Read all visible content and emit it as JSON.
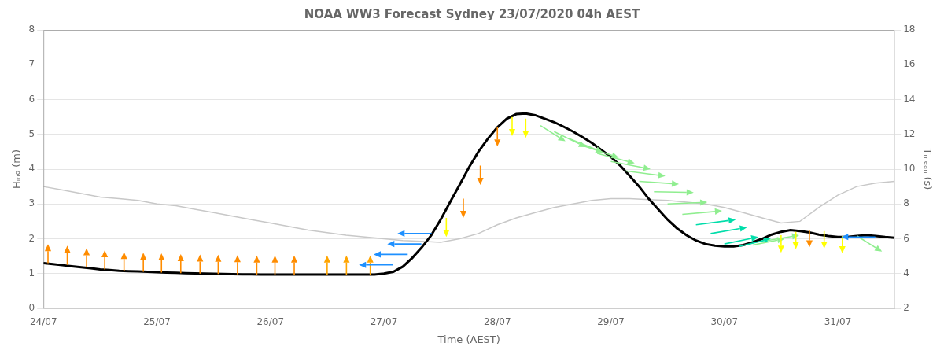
{
  "chart_data": {
    "type": "line",
    "title": "NOAA WW3 Forecast Sydney 23/07/2020 04h AEST",
    "xlabel": "Time (AEST)",
    "ylabel": "Hₘ₀ (m)",
    "y2label": "Tₘₑₐₙ (s)",
    "xlim": [
      0.0,
      7.5
    ],
    "xticks": [
      {
        "value": 0,
        "label": "24/07"
      },
      {
        "value": 1,
        "label": "25/07"
      },
      {
        "value": 2,
        "label": "26/07"
      },
      {
        "value": 3,
        "label": "27/07"
      },
      {
        "value": 4,
        "label": "28/07"
      },
      {
        "value": 5,
        "label": "29/07"
      },
      {
        "value": 6,
        "label": "30/07"
      },
      {
        "value": 7,
        "label": "31/07"
      }
    ],
    "ylim": [
      0,
      8
    ],
    "yticks": [
      0,
      1,
      2,
      3,
      4,
      5,
      6,
      7,
      8
    ],
    "y2lim": [
      2,
      18
    ],
    "y2ticks": [
      2,
      4,
      6,
      8,
      10,
      12,
      14,
      16,
      18
    ],
    "grid": "y",
    "legend": false,
    "series": [
      {
        "axis": "y2",
        "color": "#c8c8c8",
        "x": [
          0.0,
          0.167,
          0.333,
          0.5,
          0.667,
          0.833,
          1.0,
          1.167,
          1.333,
          1.5,
          1.667,
          1.833,
          2.0,
          2.167,
          2.333,
          2.5,
          2.667,
          2.833,
          3.0,
          3.167,
          3.333,
          3.5,
          3.667,
          3.833,
          4.0,
          4.167,
          4.333,
          4.5,
          4.667,
          4.833,
          5.0,
          5.167,
          5.333,
          5.5,
          5.667,
          5.833,
          6.0,
          6.167,
          6.333,
          6.5,
          6.667,
          6.833,
          7.0,
          7.167,
          7.333,
          7.5
        ],
        "values": [
          9.0,
          8.8,
          8.6,
          8.4,
          8.3,
          8.2,
          8.0,
          7.9,
          7.7,
          7.5,
          7.3,
          7.1,
          6.9,
          6.7,
          6.5,
          6.35,
          6.2,
          6.1,
          6.0,
          5.9,
          5.85,
          5.8,
          6.0,
          6.3,
          6.8,
          7.2,
          7.5,
          7.8,
          8.0,
          8.2,
          8.3,
          8.3,
          8.25,
          8.2,
          8.1,
          8.0,
          7.8,
          7.5,
          7.2,
          6.9,
          7.0,
          7.8,
          8.5,
          9.0,
          9.2,
          9.3
        ]
      },
      {
        "axis": "y",
        "color": "#000000",
        "x": [
          0.0,
          0.083,
          0.167,
          0.25,
          0.333,
          0.417,
          0.5,
          0.583,
          0.667,
          0.75,
          0.833,
          0.917,
          1.0,
          1.083,
          1.167,
          1.25,
          1.333,
          1.417,
          1.5,
          1.583,
          1.667,
          1.75,
          1.833,
          1.917,
          2.0,
          2.083,
          2.167,
          2.25,
          2.333,
          2.417,
          2.5,
          2.583,
          2.667,
          2.75,
          2.833,
          2.917,
          3.0,
          3.083,
          3.167,
          3.25,
          3.333,
          3.417,
          3.5,
          3.583,
          3.667,
          3.75,
          3.833,
          3.917,
          4.0,
          4.083,
          4.167,
          4.25,
          4.333,
          4.417,
          4.5,
          4.583,
          4.667,
          4.75,
          4.833,
          4.917,
          5.0,
          5.083,
          5.167,
          5.25,
          5.333,
          5.417,
          5.5,
          5.583,
          5.667,
          5.75,
          5.833,
          5.917,
          6.0,
          6.083,
          6.167,
          6.25,
          6.333,
          6.417,
          6.5,
          6.583,
          6.667,
          6.75,
          6.833,
          6.917,
          7.0,
          7.083,
          7.167,
          7.25,
          7.333,
          7.417,
          7.5
        ],
        "values": [
          1.3,
          1.27,
          1.24,
          1.21,
          1.18,
          1.15,
          1.12,
          1.1,
          1.08,
          1.07,
          1.06,
          1.05,
          1.04,
          1.03,
          1.02,
          1.01,
          1.005,
          1.0,
          0.995,
          0.99,
          0.985,
          0.98,
          0.975,
          0.97,
          0.97,
          0.97,
          0.97,
          0.97,
          0.97,
          0.97,
          0.97,
          0.97,
          0.97,
          0.97,
          0.97,
          0.97,
          1.0,
          1.05,
          1.2,
          1.45,
          1.75,
          2.1,
          2.55,
          3.05,
          3.55,
          4.05,
          4.5,
          4.88,
          5.2,
          5.45,
          5.58,
          5.6,
          5.55,
          5.45,
          5.35,
          5.22,
          5.08,
          4.92,
          4.75,
          4.55,
          4.35,
          4.1,
          3.8,
          3.5,
          3.15,
          2.85,
          2.55,
          2.3,
          2.1,
          1.95,
          1.85,
          1.8,
          1.78,
          1.78,
          1.82,
          1.9,
          2.0,
          2.12,
          2.2,
          2.25,
          2.22,
          2.18,
          2.12,
          2.08,
          2.05,
          2.05,
          2.08,
          2.1,
          2.08,
          2.05,
          2.03
        ]
      }
    ],
    "arrows": [
      {
        "x": 0.04,
        "y": 1.3,
        "dx": 0.0,
        "dy": 0.55,
        "color": "#FF8C00"
      },
      {
        "x": 0.21,
        "y": 1.25,
        "dx": 0.0,
        "dy": 0.55,
        "color": "#FF8C00"
      },
      {
        "x": 0.38,
        "y": 1.18,
        "dx": 0.0,
        "dy": 0.55,
        "color": "#FF8C00"
      },
      {
        "x": 0.54,
        "y": 1.12,
        "dx": 0.0,
        "dy": 0.55,
        "color": "#FF8C00"
      },
      {
        "x": 0.71,
        "y": 1.07,
        "dx": 0.0,
        "dy": 0.55,
        "color": "#FF8C00"
      },
      {
        "x": 0.88,
        "y": 1.05,
        "dx": 0.0,
        "dy": 0.55,
        "color": "#FF8C00"
      },
      {
        "x": 1.04,
        "y": 1.03,
        "dx": 0.0,
        "dy": 0.55,
        "color": "#FF8C00"
      },
      {
        "x": 1.21,
        "y": 1.01,
        "dx": 0.0,
        "dy": 0.55,
        "color": "#FF8C00"
      },
      {
        "x": 1.38,
        "y": 1.0,
        "dx": 0.0,
        "dy": 0.55,
        "color": "#FF8C00"
      },
      {
        "x": 1.54,
        "y": 0.99,
        "dx": 0.0,
        "dy": 0.55,
        "color": "#FF8C00"
      },
      {
        "x": 1.71,
        "y": 0.98,
        "dx": 0.0,
        "dy": 0.55,
        "color": "#FF8C00"
      },
      {
        "x": 1.88,
        "y": 0.97,
        "dx": 0.0,
        "dy": 0.55,
        "color": "#FF8C00"
      },
      {
        "x": 2.04,
        "y": 0.97,
        "dx": 0.0,
        "dy": 0.55,
        "color": "#FF8C00"
      },
      {
        "x": 2.21,
        "y": 0.97,
        "dx": 0.0,
        "dy": 0.55,
        "color": "#FF8C00"
      },
      {
        "x": 2.5,
        "y": 0.97,
        "dx": 0.0,
        "dy": 0.55,
        "color": "#FFA500"
      },
      {
        "x": 2.67,
        "y": 0.97,
        "dx": 0.0,
        "dy": 0.55,
        "color": "#FFA500"
      },
      {
        "x": 2.88,
        "y": 0.97,
        "dx": 0.0,
        "dy": 0.55,
        "color": "#FFA500"
      },
      {
        "x": 3.08,
        "y": 1.25,
        "dx": -0.3,
        "dy": 0.0,
        "color": "#1E90FF"
      },
      {
        "x": 3.21,
        "y": 1.55,
        "dx": -0.3,
        "dy": 0.0,
        "color": "#1E90FF"
      },
      {
        "x": 3.33,
        "y": 1.85,
        "dx": -0.3,
        "dy": 0.0,
        "color": "#1E90FF"
      },
      {
        "x": 3.42,
        "y": 2.15,
        "dx": -0.3,
        "dy": 0.0,
        "color": "#1E90FF"
      },
      {
        "x": 3.55,
        "y": 2.6,
        "dx": 0.0,
        "dy": -0.55,
        "color": "#FFFF00"
      },
      {
        "x": 3.7,
        "y": 3.15,
        "dx": 0.0,
        "dy": -0.55,
        "color": "#FF8C00"
      },
      {
        "x": 3.85,
        "y": 4.1,
        "dx": 0.0,
        "dy": -0.55,
        "color": "#FF8C00"
      },
      {
        "x": 4.0,
        "y": 5.2,
        "dx": 0.0,
        "dy": -0.55,
        "color": "#FF8C00"
      },
      {
        "x": 4.13,
        "y": 5.5,
        "dx": 0.0,
        "dy": -0.55,
        "color": "#FFFF00"
      },
      {
        "x": 4.25,
        "y": 5.45,
        "dx": 0.0,
        "dy": -0.55,
        "color": "#FFFF00"
      },
      {
        "x": 4.38,
        "y": 5.25,
        "dx": 0.22,
        "dy": -0.45,
        "color": "#90EE90"
      },
      {
        "x": 4.5,
        "y": 5.08,
        "dx": 0.28,
        "dy": -0.45,
        "color": "#90EE90"
      },
      {
        "x": 4.63,
        "y": 4.88,
        "dx": 0.3,
        "dy": -0.4,
        "color": "#90EE90"
      },
      {
        "x": 4.75,
        "y": 4.68,
        "dx": 0.32,
        "dy": -0.35,
        "color": "#90EE90"
      },
      {
        "x": 4.88,
        "y": 4.45,
        "dx": 0.33,
        "dy": -0.28,
        "color": "#90EE90"
      },
      {
        "x": 5.0,
        "y": 4.22,
        "dx": 0.35,
        "dy": -0.22,
        "color": "#90EE90"
      },
      {
        "x": 5.13,
        "y": 3.95,
        "dx": 0.35,
        "dy": -0.15,
        "color": "#90EE90"
      },
      {
        "x": 5.25,
        "y": 3.65,
        "dx": 0.35,
        "dy": -0.08,
        "color": "#90EE90"
      },
      {
        "x": 5.38,
        "y": 3.35,
        "dx": 0.35,
        "dy": -0.02,
        "color": "#90EE90"
      },
      {
        "x": 5.5,
        "y": 3.0,
        "dx": 0.35,
        "dy": 0.05,
        "color": "#90EE90"
      },
      {
        "x": 5.63,
        "y": 2.7,
        "dx": 0.35,
        "dy": 0.1,
        "color": "#90EE90"
      },
      {
        "x": 5.75,
        "y": 2.4,
        "dx": 0.35,
        "dy": 0.15,
        "color": "#00DDAA"
      },
      {
        "x": 5.88,
        "y": 2.15,
        "dx": 0.32,
        "dy": 0.18,
        "color": "#00DDAA"
      },
      {
        "x": 6.0,
        "y": 1.85,
        "dx": 0.3,
        "dy": 0.2,
        "color": "#00DDAA"
      },
      {
        "x": 6.13,
        "y": 1.78,
        "dx": 0.28,
        "dy": 0.22,
        "color": "#00DDAA"
      },
      {
        "x": 6.25,
        "y": 1.82,
        "dx": 0.28,
        "dy": 0.18,
        "color": "#90EE90"
      },
      {
        "x": 6.38,
        "y": 1.95,
        "dx": 0.28,
        "dy": 0.15,
        "color": "#90EE90"
      },
      {
        "x": 6.5,
        "y": 2.1,
        "dx": 0.0,
        "dy": -0.5,
        "color": "#FFFF00"
      },
      {
        "x": 6.63,
        "y": 2.2,
        "dx": 0.0,
        "dy": -0.5,
        "color": "#FFFF00"
      },
      {
        "x": 6.75,
        "y": 2.25,
        "dx": 0.0,
        "dy": -0.5,
        "color": "#FF8C00"
      },
      {
        "x": 6.88,
        "y": 2.22,
        "dx": 0.0,
        "dy": -0.5,
        "color": "#FFFF00"
      },
      {
        "x": 7.04,
        "y": 2.08,
        "dx": 0.0,
        "dy": -0.5,
        "color": "#FFFF00"
      },
      {
        "x": 7.17,
        "y": 2.08,
        "dx": 0.22,
        "dy": -0.45,
        "color": "#90EE90"
      },
      {
        "x": 7.33,
        "y": 2.05,
        "dx": -0.3,
        "dy": 0.0,
        "color": "#1E90FF"
      }
    ]
  }
}
